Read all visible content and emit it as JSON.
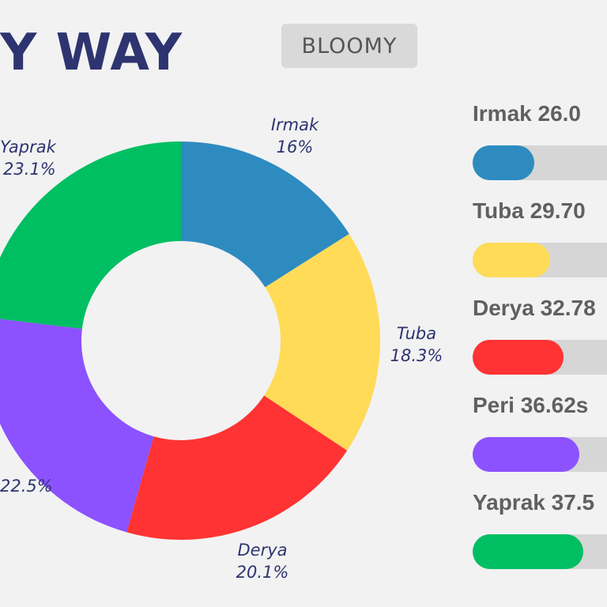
{
  "header": {
    "title": "Y WAY",
    "brand_label": "BLOOMY"
  },
  "chart_data": [
    {
      "type": "pie",
      "donut": true,
      "slices": [
        {
          "name": "Irmak",
          "value": 16,
          "label": "16%",
          "color": "#2e8bc0"
        },
        {
          "name": "Tuba",
          "value": 18.3,
          "label": "18.3%",
          "color": "#ffdb58"
        },
        {
          "name": "Derya",
          "value": 20.1,
          "label": "20.1%",
          "color": "#ff3333"
        },
        {
          "name": "Peri",
          "value": 22.5,
          "label": "22.5%",
          "color": "#8c52ff"
        },
        {
          "name": "Yaprak",
          "value": 23.1,
          "label": "23.1%",
          "color": "#00bf63"
        }
      ]
    },
    {
      "type": "bar",
      "orientation": "horizontal",
      "bars": [
        {
          "label": "Irmak 26.0",
          "value": 26.0,
          "color": "#2e8bc0"
        },
        {
          "label": "Tuba 29.70",
          "value": 29.7,
          "color": "#ffdb58"
        },
        {
          "label": "Derya 32.78",
          "value": 32.78,
          "color": "#ff3333"
        },
        {
          "label": "Peri 36.62s",
          "value": 36.62,
          "color": "#8c52ff"
        },
        {
          "label": "Yaprak 37.5",
          "value": 37.5,
          "color": "#00bf63"
        }
      ]
    }
  ]
}
